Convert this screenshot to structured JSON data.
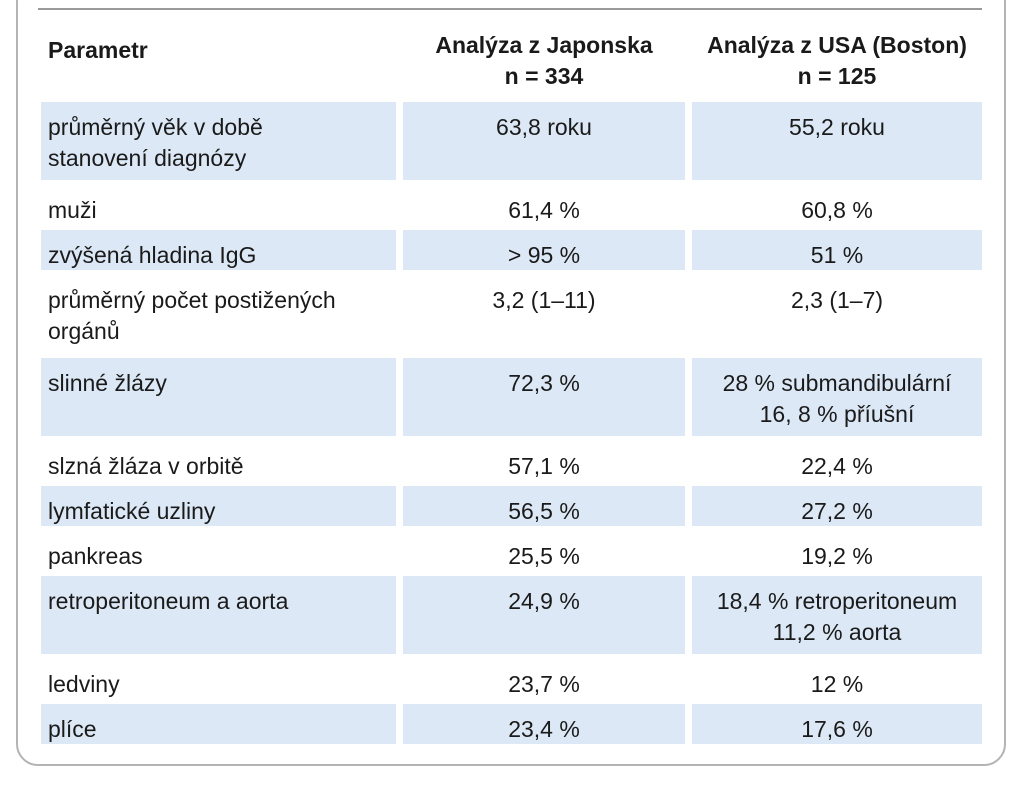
{
  "table": {
    "headers": {
      "parametr": "Parametr",
      "japonsko": [
        "Analýza z Japonska",
        "n = 334"
      ],
      "usa": [
        "Analýza z USA (Boston)",
        "n = 125"
      ]
    },
    "rows": [
      {
        "param": [
          "průměrný věk v době",
          "stanovení diagnózy"
        ],
        "jp": [
          "63,8 roku"
        ],
        "us": [
          "55,2 roku"
        ],
        "shaded": true
      },
      {
        "param": [
          "muži"
        ],
        "jp": [
          "61,4 %"
        ],
        "us": [
          "60,8 %"
        ],
        "shaded": false
      },
      {
        "param": [
          "zvýšená hladina IgG"
        ],
        "jp": [
          "> 95 %"
        ],
        "us": [
          "51 %"
        ],
        "shaded": true
      },
      {
        "param": [
          "průměrný počet postižených",
          "orgánů"
        ],
        "jp": [
          "3,2 (1–11)"
        ],
        "us": [
          "2,3 (1–7)"
        ],
        "shaded": false
      },
      {
        "param": [
          "slinné žlázy"
        ],
        "jp": [
          "72,3 %"
        ],
        "us": [
          "28 % submandibulární",
          "16, 8 % příušní"
        ],
        "shaded": true
      },
      {
        "param": [
          "slzná žláza v orbitě"
        ],
        "jp": [
          "57,1 %"
        ],
        "us": [
          "22,4 %"
        ],
        "shaded": false
      },
      {
        "param": [
          "lymfatické uzliny"
        ],
        "jp": [
          "56,5 %"
        ],
        "us": [
          "27,2 %"
        ],
        "shaded": true
      },
      {
        "param": [
          "pankreas"
        ],
        "jp": [
          "25,5 %"
        ],
        "us": [
          "19,2 %"
        ],
        "shaded": false
      },
      {
        "param": [
          "retroperitoneum a aorta"
        ],
        "jp": [
          "24,9 %"
        ],
        "us": [
          "18,4 % retroperitoneum",
          "11,2 % aorta"
        ],
        "shaded": true
      },
      {
        "param": [
          "ledviny"
        ],
        "jp": [
          "23,7 %"
        ],
        "us": [
          "12 %"
        ],
        "shaded": false
      },
      {
        "param": [
          "plíce"
        ],
        "jp": [
          "23,4 %"
        ],
        "us": [
          "17,6 %"
        ],
        "shaded": true
      }
    ]
  }
}
